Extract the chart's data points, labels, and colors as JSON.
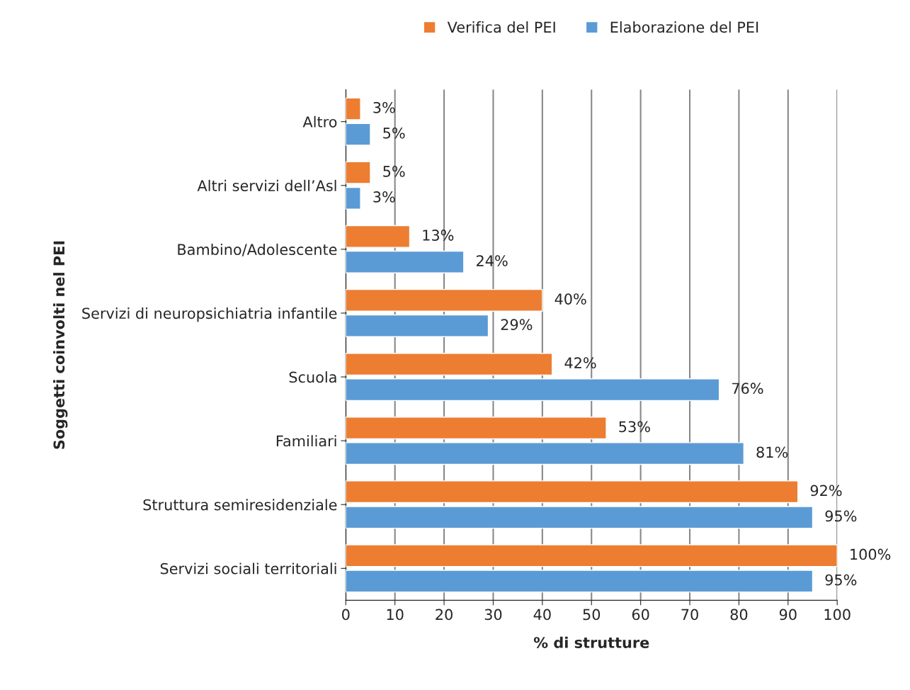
{
  "chart_data": {
    "type": "bar",
    "orientation": "horizontal",
    "categories": [
      "Altro",
      "Altri servizi dell’Asl",
      "Bambino/Adolescente",
      "Servizi di neuropsichiatria infantile",
      "Scuola",
      "Familiari",
      "Struttura semiresidenziale",
      "Servizi sociali territoriali"
    ],
    "series": [
      {
        "name": "Verifica del PEI",
        "color": "#ed7d31",
        "values": [
          3,
          5,
          13,
          40,
          42,
          53,
          92,
          100
        ],
        "value_labels": [
          "3%",
          "5%",
          "13%",
          "40%",
          "42%",
          "53%",
          "92%",
          "100%"
        ]
      },
      {
        "name": "Elaborazione del PEI",
        "color": "#5b9bd5",
        "values": [
          5,
          3,
          24,
          29,
          76,
          81,
          95,
          95
        ],
        "value_labels": [
          "5%",
          "3%",
          "24%",
          "29%",
          "76%",
          "81%",
          "95%",
          "95%"
        ]
      }
    ],
    "xlabel": "% di strutture",
    "ylabel": "Soggetti coinvolti nel PEI",
    "xlim": [
      0,
      100
    ],
    "xticks": [
      0,
      10,
      20,
      30,
      40,
      50,
      60,
      70,
      80,
      90,
      100
    ],
    "grid": "x",
    "legend": "top"
  }
}
